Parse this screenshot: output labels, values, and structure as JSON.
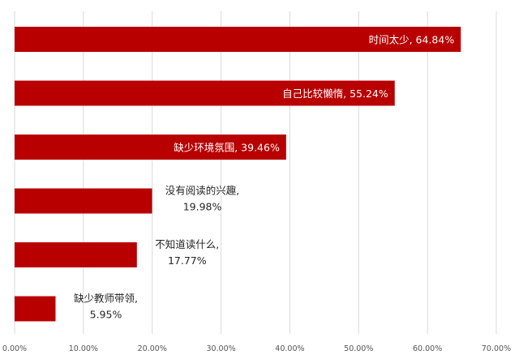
{
  "chart_data": {
    "type": "bar",
    "orientation": "horizontal",
    "title": "",
    "xlabel": "",
    "ylabel": "",
    "xlim": [
      0,
      70
    ],
    "x_ticks": [
      "0.00%",
      "10.00%",
      "20.00%",
      "30.00%",
      "40.00%",
      "50.00%",
      "60.00%",
      "70.00%"
    ],
    "grid": "vertical",
    "legend": "none",
    "bar_color": "#b80000",
    "categories": [
      "时间太少",
      "自己比较懒惰",
      "缺少环境氛围",
      "没有阅读的兴趣",
      "不知道读什么",
      "缺少教师带领"
    ],
    "values": [
      64.84,
      55.24,
      39.46,
      19.98,
      17.77,
      5.95
    ],
    "data_labels": [
      "时间太少, 64.84%",
      "自己比较懒惰, 55.24%",
      "缺少环境氛围, 39.46%",
      [
        "没有阅读的兴趣,",
        "19.98%"
      ],
      [
        "不知道读什么,",
        "17.77%"
      ],
      [
        "缺少教师带领,",
        "5.95%"
      ]
    ],
    "label_position": [
      "inside-end",
      "inside-end",
      "inside-end",
      "outside-end",
      "outside-end",
      "outside-end"
    ]
  }
}
